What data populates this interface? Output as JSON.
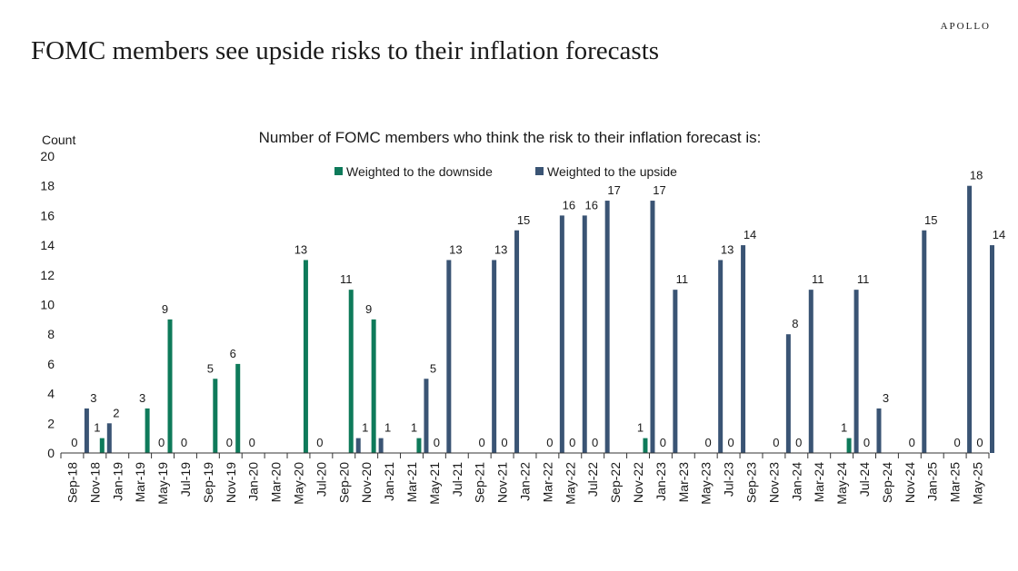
{
  "header": {
    "brand": "APOLLO",
    "title": "FOMC members see upside risks to their inflation forecasts"
  },
  "colors": {
    "downside": "#0e7a5a",
    "upside": "#3a5474",
    "axis": "#333333"
  },
  "chart_data": {
    "type": "bar",
    "title": "Number of FOMC members who think the risk to their inflation forecast is:",
    "ylabel": "Count",
    "xlabel": "",
    "ylim": [
      0,
      20
    ],
    "yticks": [
      0,
      2,
      4,
      6,
      8,
      10,
      12,
      14,
      16,
      18,
      20
    ],
    "legend_position": "top-center",
    "categories": [
      "Sep-18",
      "Nov-18",
      "Jan-19",
      "Mar-19",
      "May-19",
      "Jul-19",
      "Sep-19",
      "Nov-19",
      "Jan-20",
      "Mar-20",
      "May-20",
      "Jul-20",
      "Sep-20",
      "Nov-20",
      "Jan-21",
      "Mar-21",
      "May-21",
      "Jul-21",
      "Sep-21",
      "Nov-21",
      "Jan-22",
      "Mar-22",
      "May-22",
      "Jul-22",
      "Sep-22",
      "Nov-22",
      "Jan-23",
      "Mar-23",
      "May-23",
      "Jul-23",
      "Sep-23",
      "Nov-23",
      "Jan-24",
      "Mar-24",
      "May-24",
      "Jul-24",
      "Sep-24",
      "Nov-24",
      "Jan-25",
      "Mar-25",
      "May-25"
    ],
    "observations": [
      {
        "after": 0,
        "down": 0,
        "up": 3
      },
      {
        "after": 1,
        "down": 1,
        "up": 2
      },
      {
        "after": 3,
        "down": 3,
        "up": 0
      },
      {
        "after": 4,
        "down": 9,
        "up": 0
      },
      {
        "after": 6,
        "down": 5,
        "up": 0
      },
      {
        "after": 7,
        "down": 6,
        "up": 0
      },
      {
        "after": 10,
        "down": 13,
        "up": 0
      },
      {
        "after": 12,
        "down": 11,
        "up": 1
      },
      {
        "after": 13,
        "down": 9,
        "up": 1
      },
      {
        "after": 15,
        "down": 1,
        "up": 5
      },
      {
        "after": 16,
        "down": 0,
        "up": 13
      },
      {
        "after": 18,
        "down": 0,
        "up": 13
      },
      {
        "after": 19,
        "down": 0,
        "up": 15
      },
      {
        "after": 21,
        "down": 0,
        "up": 16
      },
      {
        "after": 22,
        "down": 0,
        "up": 16
      },
      {
        "after": 23,
        "down": 0,
        "up": 17
      },
      {
        "after": 25,
        "down": 1,
        "up": 17
      },
      {
        "after": 26,
        "down": 0,
        "up": 11
      },
      {
        "after": 28,
        "down": 0,
        "up": 13
      },
      {
        "after": 29,
        "down": 0,
        "up": 14
      },
      {
        "after": 31,
        "down": 0,
        "up": 8
      },
      {
        "after": 32,
        "down": 0,
        "up": 11
      },
      {
        "after": 34,
        "down": 1,
        "up": 11
      },
      {
        "after": 35,
        "down": 0,
        "up": 3
      },
      {
        "after": 37,
        "down": 0,
        "up": 15
      },
      {
        "after": 39,
        "down": 0,
        "up": 18
      },
      {
        "after": 40,
        "down": 0,
        "up": 14
      }
    ],
    "series": [
      {
        "name": "Weighted to the downside",
        "key": "down"
      },
      {
        "name": "Weighted to the upside",
        "key": "up"
      }
    ]
  }
}
